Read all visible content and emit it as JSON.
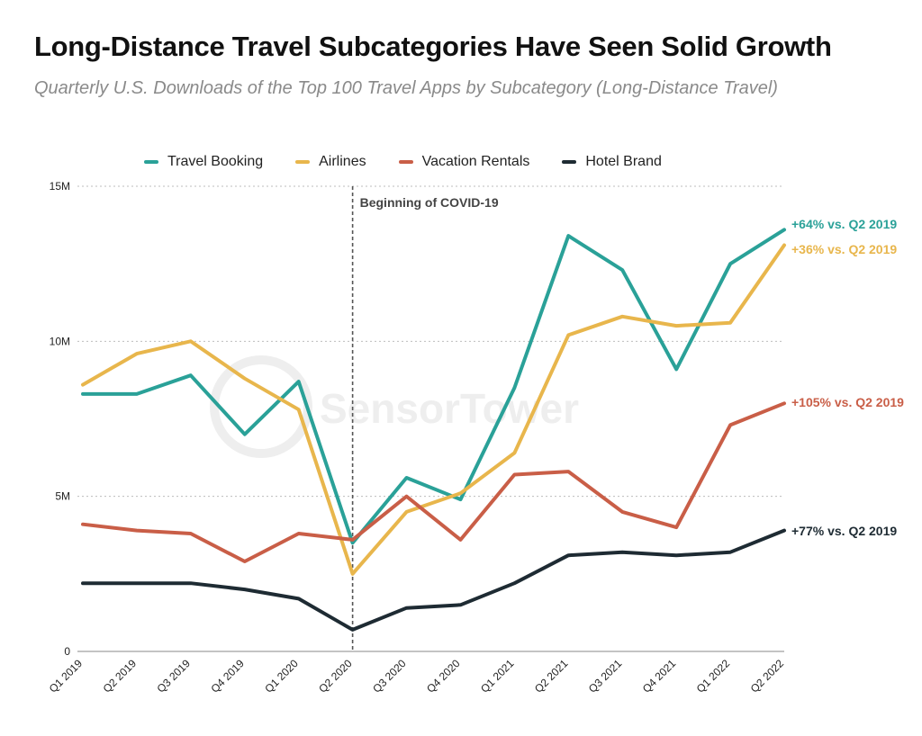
{
  "title": "Long-Distance Travel Subcategories Have Seen Solid Growth",
  "subtitle": "Quarterly U.S. Downloads of the Top 100 Travel Apps by Subcategory (Long-Distance Travel)",
  "watermark": "SensorTower",
  "chart_data": {
    "type": "line",
    "categories": [
      "Q1 2019",
      "Q2 2019",
      "Q3 2019",
      "Q4 2019",
      "Q1 2020",
      "Q2 2020",
      "Q3 2020",
      "Q4 2020",
      "Q1 2021",
      "Q2 2021",
      "Q3 2021",
      "Q4 2021",
      "Q1 2022",
      "Q2 2022"
    ],
    "ylim": [
      0,
      15000000
    ],
    "yticks": [
      0,
      5000000,
      10000000,
      15000000
    ],
    "ytick_labels": [
      "0",
      "5M",
      "10M",
      "15M"
    ],
    "grid": "horizontal dotted",
    "legend_position": "top",
    "series": [
      {
        "name": "Travel Booking",
        "color": "#2aa198",
        "values": [
          8300000,
          8300000,
          8900000,
          7000000,
          8700000,
          3500000,
          5600000,
          4900000,
          8500000,
          13400000,
          12300000,
          9100000,
          12500000,
          13600000
        ],
        "end_label": "+64% vs. Q2 2019"
      },
      {
        "name": "Airlines",
        "color": "#e8b64c",
        "values": [
          8600000,
          9600000,
          10000000,
          8800000,
          7800000,
          2500000,
          4500000,
          5100000,
          6400000,
          10200000,
          10800000,
          10500000,
          10600000,
          13100000
        ],
        "end_label": "+36% vs. Q2 2019"
      },
      {
        "name": "Vacation Rentals",
        "color": "#c95e47",
        "values": [
          4100000,
          3900000,
          3800000,
          2900000,
          3800000,
          3600000,
          5000000,
          3600000,
          5700000,
          5800000,
          4500000,
          4000000,
          7300000,
          8000000
        ],
        "end_label": "+105% vs. Q2 2019"
      },
      {
        "name": "Hotel Brand",
        "color": "#1e2b33",
        "values": [
          2200000,
          2200000,
          2200000,
          2000000,
          1700000,
          700000,
          1400000,
          1500000,
          2200000,
          3100000,
          3200000,
          3100000,
          3200000,
          3900000
        ],
        "end_label": "+77% vs. Q2 2019"
      }
    ],
    "annotations": [
      {
        "text": "Beginning of COVID-19",
        "x": "Q2 2020",
        "style": "vertical dashed line"
      }
    ]
  }
}
